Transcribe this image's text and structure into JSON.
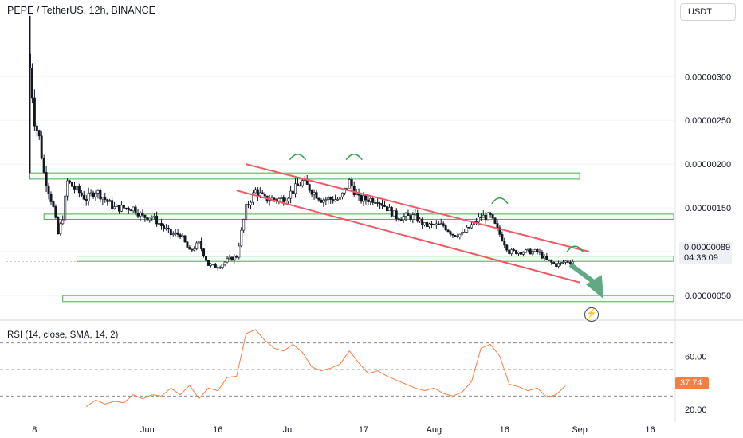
{
  "header": {
    "symbol_title": "PEPE / TetherUS, 12h, BINANCE"
  },
  "currency_button": {
    "label": "USDT"
  },
  "price_tag": {
    "value": "0.00000089",
    "countdown": "04:36:09"
  },
  "rsi": {
    "title": "RSI (14, close, SMA, 14, 2)",
    "value_tag": "37.74",
    "line_color": "#f57f41"
  },
  "colors": {
    "up": "#131722",
    "down": "#131722",
    "zone": "#4caf50",
    "channel": "#f05a67",
    "arrow": "#5fa983"
  },
  "chart_data": [
    {
      "type": "candlestick",
      "title": "PEPE / TetherUS, 12h, BINANCE",
      "x_tick_labels": [
        "8",
        "Jun",
        "16",
        "Jul",
        "17",
        "Aug",
        "16",
        "Sep",
        "16"
      ],
      "x_ticks": [
        "2023-05-08",
        "2023-06-01",
        "2023-06-16",
        "2023-07-01",
        "2023-07-17",
        "2023-08-01",
        "2023-08-16",
        "2023-09-01",
        "2023-09-16"
      ],
      "xlim": [
        "2023-05-02",
        "2023-09-21"
      ],
      "y_tick_labels": [
        "0.00000050",
        "0.00000100",
        "0.00000150",
        "0.00000200",
        "0.00000250",
        "0.00000300"
      ],
      "y_ticks": [
        5e-07,
        1e-06,
        1.5e-06,
        2e-06,
        2.5e-06,
        3e-06
      ],
      "ylim": [
        3.1e-07,
        3.83e-06
      ],
      "last_price": 8.9e-07,
      "grid": false,
      "close_series": [
        [
          "2023-05-07",
          3.1e-06
        ],
        [
          "2023-05-08",
          2.5e-06
        ],
        [
          "2023-05-09",
          2.3e-06
        ],
        [
          "2023-05-10",
          1.9e-06
        ],
        [
          "2023-05-11",
          1.7e-06
        ],
        [
          "2023-05-12",
          1.5e-06
        ],
        [
          "2023-05-13",
          1.2e-06
        ],
        [
          "2023-05-14",
          1.4e-06
        ],
        [
          "2023-05-15",
          1.8e-06
        ],
        [
          "2023-05-17",
          1.7e-06
        ],
        [
          "2023-05-19",
          1.6e-06
        ],
        [
          "2023-05-21",
          1.7e-06
        ],
        [
          "2023-05-23",
          1.6e-06
        ],
        [
          "2023-05-25",
          1.5e-06
        ],
        [
          "2023-05-27",
          1.5e-06
        ],
        [
          "2023-05-29",
          1.5e-06
        ],
        [
          "2023-05-31",
          1.4e-06
        ],
        [
          "2023-06-02",
          1.4e-06
        ],
        [
          "2023-06-04",
          1.3e-06
        ],
        [
          "2023-06-06",
          1.2e-06
        ],
        [
          "2023-06-08",
          1.2e-06
        ],
        [
          "2023-06-10",
          1e-06
        ],
        [
          "2023-06-12",
          1.1e-06
        ],
        [
          "2023-06-14",
          8.5e-07
        ],
        [
          "2023-06-16",
          8.3e-07
        ],
        [
          "2023-06-18",
          9e-07
        ],
        [
          "2023-06-20",
          9.5e-07
        ],
        [
          "2023-06-22",
          1.5e-06
        ],
        [
          "2023-06-24",
          1.7e-06
        ],
        [
          "2023-06-26",
          1.6e-06
        ],
        [
          "2023-06-28",
          1.6e-06
        ],
        [
          "2023-06-30",
          1.6e-06
        ],
        [
          "2023-07-02",
          1.7e-06
        ],
        [
          "2023-07-04",
          1.8e-06
        ],
        [
          "2023-07-06",
          1.7e-06
        ],
        [
          "2023-07-08",
          1.6e-06
        ],
        [
          "2023-07-10",
          1.6e-06
        ],
        [
          "2023-07-12",
          1.6e-06
        ],
        [
          "2023-07-14",
          1.8e-06
        ],
        [
          "2023-07-16",
          1.6e-06
        ],
        [
          "2023-07-18",
          1.6e-06
        ],
        [
          "2023-07-20",
          1.6e-06
        ],
        [
          "2023-07-22",
          1.5e-06
        ],
        [
          "2023-07-24",
          1.4e-06
        ],
        [
          "2023-07-26",
          1.4e-06
        ],
        [
          "2023-07-28",
          1.4e-06
        ],
        [
          "2023-07-30",
          1.3e-06
        ],
        [
          "2023-08-01",
          1.3e-06
        ],
        [
          "2023-08-03",
          1.3e-06
        ],
        [
          "2023-08-05",
          1.2e-06
        ],
        [
          "2023-08-07",
          1.2e-06
        ],
        [
          "2023-08-09",
          1.3e-06
        ],
        [
          "2023-08-11",
          1.4e-06
        ],
        [
          "2023-08-13",
          1.4e-06
        ],
        [
          "2023-08-15",
          1.2e-06
        ],
        [
          "2023-08-17",
          1e-06
        ],
        [
          "2023-08-19",
          1e-06
        ],
        [
          "2023-08-21",
          1e-06
        ],
        [
          "2023-08-23",
          1e-06
        ],
        [
          "2023-08-25",
          9e-07
        ],
        [
          "2023-08-27",
          8.5e-07
        ],
        [
          "2023-08-29",
          8.9e-07
        ]
      ],
      "annotations": {
        "horizontal_zones": [
          {
            "y": [
              1.83e-06,
              1.9e-06
            ],
            "x": [
              "2023-05-07",
              "2023-09-01"
            ]
          },
          {
            "y": [
              1.37e-06,
              1.43e-06
            ],
            "x": [
              "2023-05-10",
              "2023-09-21"
            ]
          },
          {
            "y": [
              8.9e-07,
              9.5e-07
            ],
            "x": [
              "2023-05-17",
              "2023-09-21"
            ]
          },
          {
            "y": [
              4.3e-07,
              5e-07
            ],
            "x": [
              "2023-05-14",
              "2023-09-21"
            ]
          }
        ],
        "descending_channel": {
          "upper": [
            [
              "2023-06-22",
              2e-06
            ],
            [
              "2023-09-03",
              1e-06
            ]
          ],
          "lower": [
            [
              "2023-06-20",
              1.7e-06
            ],
            [
              "2023-09-01",
              6.5e-07
            ]
          ]
        },
        "projection_arrow": {
          "from": [
            "2023-08-29",
            8.9e-07
          ],
          "to": [
            "2023-09-03",
            5e-07
          ]
        }
      }
    },
    {
      "type": "line",
      "title": "RSI (14, close, SMA, 14, 2)",
      "y_tick_labels": [
        "20.00",
        "60.00"
      ],
      "y_ticks": [
        20,
        60
      ],
      "ylim": [
        10.4,
        86
      ],
      "bands": [
        30,
        50,
        70
      ],
      "series": [
        {
          "values": [
            [
              "2023-05-19",
              22
            ],
            [
              "2023-05-21",
              27
            ],
            [
              "2023-05-23",
              24
            ],
            [
              "2023-05-25",
              26
            ],
            [
              "2023-05-27",
              25
            ],
            [
              "2023-05-29",
              31
            ],
            [
              "2023-05-31",
              28
            ],
            [
              "2023-06-02",
              31
            ],
            [
              "2023-06-04",
              30
            ],
            [
              "2023-06-06",
              36
            ],
            [
              "2023-06-08",
              31
            ],
            [
              "2023-06-10",
              38
            ],
            [
              "2023-06-12",
              28
            ],
            [
              "2023-06-14",
              36
            ],
            [
              "2023-06-16",
              34
            ],
            [
              "2023-06-18",
              44
            ],
            [
              "2023-06-20",
              45
            ],
            [
              "2023-06-22",
              77
            ],
            [
              "2023-06-24",
              80
            ],
            [
              "2023-06-26",
              72
            ],
            [
              "2023-06-28",
              66
            ],
            [
              "2023-06-30",
              64
            ],
            [
              "2023-07-02",
              69
            ],
            [
              "2023-07-04",
              63
            ],
            [
              "2023-07-06",
              52
            ],
            [
              "2023-07-08",
              49
            ],
            [
              "2023-07-10",
              51
            ],
            [
              "2023-07-12",
              54
            ],
            [
              "2023-07-14",
              64
            ],
            [
              "2023-07-16",
              55
            ],
            [
              "2023-07-18",
              47
            ],
            [
              "2023-07-20",
              49
            ],
            [
              "2023-07-22",
              45
            ],
            [
              "2023-07-24",
              42
            ],
            [
              "2023-07-26",
              39
            ],
            [
              "2023-07-28",
              36
            ],
            [
              "2023-07-30",
              34
            ],
            [
              "2023-08-01",
              36
            ],
            [
              "2023-08-03",
              32
            ],
            [
              "2023-08-05",
              30
            ],
            [
              "2023-08-07",
              33
            ],
            [
              "2023-08-09",
              41
            ],
            [
              "2023-08-11",
              66
            ],
            [
              "2023-08-13",
              69
            ],
            [
              "2023-08-15",
              60
            ],
            [
              "2023-08-17",
              39
            ],
            [
              "2023-08-19",
              37
            ],
            [
              "2023-08-21",
              34
            ],
            [
              "2023-08-23",
              36
            ],
            [
              "2023-08-25",
              29
            ],
            [
              "2023-08-27",
              31
            ],
            [
              "2023-08-29",
              37.74
            ]
          ]
        }
      ]
    }
  ]
}
